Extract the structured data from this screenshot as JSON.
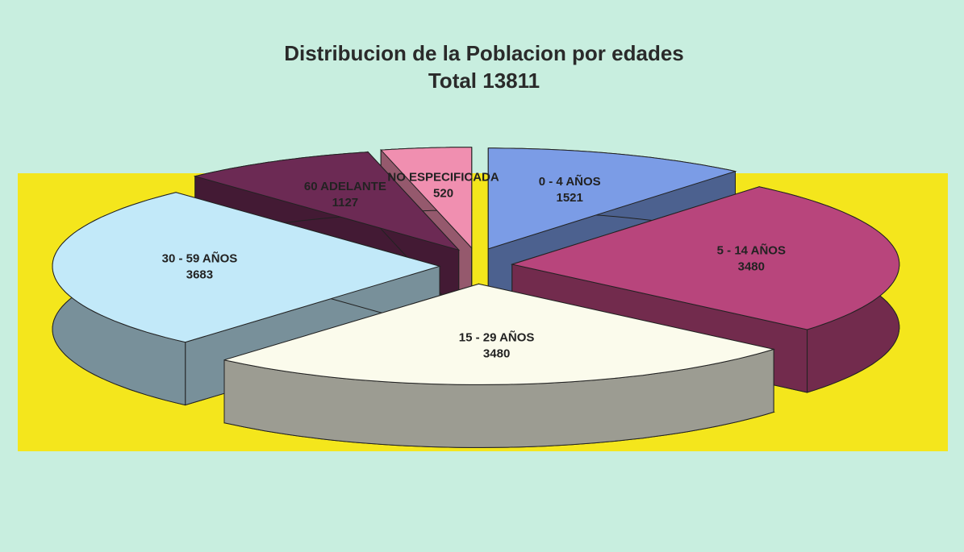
{
  "chart_data": {
    "type": "pie",
    "title": "Distribucion de la Poblacion por edades",
    "subtitle": "Total 13811",
    "categories": [
      "0 - 4 AÑOS",
      "5 - 14 AÑOS",
      "15 - 29 AÑOS",
      "30 - 59 AÑOS",
      "60 ADELANTE",
      "NO ESPECIFICADA"
    ],
    "values": [
      1521,
      3480,
      3480,
      3683,
      1127,
      520
    ],
    "colors": [
      "#7b9ce6",
      "#b8457c",
      "#fbfbec",
      "#c2e9f9",
      "#6c2a54",
      "#f08fb0"
    ]
  }
}
